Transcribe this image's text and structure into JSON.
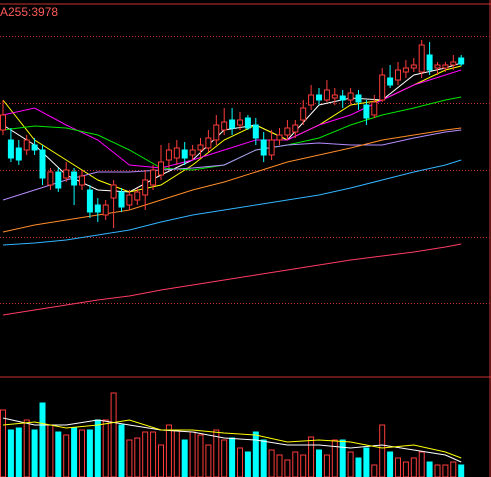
{
  "chart_data": [
    {
      "type": "candlestick",
      "title": "A255:3978",
      "title_color": "#ff5a5a",
      "up_color": "#ff3c3c",
      "down_color": "#00ffff",
      "grid": true,
      "grid_color": "#c83232",
      "ylim": [
        25,
        396
      ],
      "yticks": [
        97,
        163,
        230,
        297,
        364
      ],
      "open": [
        270,
        260,
        252,
        250,
        255,
        250,
        215,
        228,
        222,
        228,
        215,
        210,
        195,
        185,
        202,
        208,
        195,
        200,
        205,
        215,
        225,
        240,
        242,
        250,
        245,
        250,
        252,
        260,
        270,
        280,
        275,
        282,
        275,
        260,
        245,
        260,
        265,
        268,
        280,
        295,
        305,
        300,
        302,
        304,
        300,
        305,
        295,
        285,
        300,
        322,
        320,
        328,
        332,
        328,
        345,
        332,
        332,
        335,
        342
      ],
      "high": [
        300,
        272,
        260,
        265,
        262,
        255,
        232,
        232,
        238,
        232,
        230,
        215,
        202,
        200,
        220,
        212,
        210,
        212,
        230,
        235,
        255,
        257,
        260,
        258,
        255,
        262,
        270,
        285,
        292,
        292,
        288,
        285,
        282,
        268,
        270,
        272,
        280,
        280,
        300,
        315,
        312,
        320,
        312,
        310,
        312,
        310,
        300,
        305,
        332,
        335,
        338,
        340,
        342,
        360,
        358,
        338,
        338,
        345,
        345
      ],
      "low": [
        265,
        238,
        235,
        245,
        245,
        215,
        210,
        208,
        218,
        195,
        210,
        182,
        178,
        180,
        172,
        188,
        190,
        195,
        190,
        210,
        220,
        232,
        235,
        235,
        240,
        242,
        248,
        255,
        265,
        265,
        270,
        270,
        255,
        238,
        240,
        255,
        260,
        262,
        275,
        290,
        295,
        298,
        295,
        292,
        295,
        290,
        275,
        282,
        298,
        312,
        315,
        322,
        328,
        322,
        325,
        325,
        328,
        330,
        334
      ],
      "close": [
        285,
        242,
        240,
        260,
        250,
        222,
        228,
        212,
        230,
        215,
        224,
        188,
        188,
        195,
        215,
        193,
        205,
        208,
        220,
        230,
        238,
        250,
        252,
        242,
        250,
        255,
        262,
        275,
        278,
        272,
        280,
        272,
        262,
        245,
        260,
        265,
        272,
        275,
        292,
        305,
        300,
        310,
        305,
        300,
        307,
        298,
        282,
        298,
        325,
        315,
        330,
        332,
        335,
        355,
        330,
        335,
        335,
        338,
        336
      ],
      "lines": [
        {
          "color": "#ffffff",
          "x": [
            0,
            4,
            8,
            12,
            16,
            20,
            24,
            28,
            32,
            36,
            40,
            44,
            48,
            52,
            56,
            58
          ],
          "values": [
            275,
            255,
            225,
            210,
            208,
            225,
            240,
            270,
            275,
            260,
            295,
            302,
            300,
            325,
            332,
            337
          ]
        },
        {
          "color": "#ffff00",
          "x": [
            0,
            4,
            8,
            12,
            16,
            20,
            24,
            28,
            32,
            36,
            40,
            44,
            48,
            52,
            56,
            58
          ],
          "values": [
            300,
            260,
            240,
            220,
            208,
            215,
            235,
            260,
            275,
            260,
            275,
            295,
            300,
            315,
            330,
            334
          ]
        },
        {
          "color": "#ff00ff",
          "x": [
            0,
            4,
            8,
            12,
            16,
            20,
            24,
            28,
            32,
            36,
            40,
            44,
            48,
            52,
            56,
            58
          ],
          "values": [
            285,
            292,
            275,
            260,
            235,
            232,
            240,
            250,
            260,
            260,
            275,
            285,
            300,
            315,
            325,
            330
          ]
        },
        {
          "color": "#00e600",
          "x": [
            0,
            4,
            8,
            12,
            16,
            20,
            24,
            28,
            32,
            36,
            40,
            44,
            48,
            52,
            56,
            58
          ],
          "values": [
            270,
            274,
            272,
            265,
            250,
            232,
            230,
            235,
            250,
            255,
            262,
            275,
            285,
            292,
            300,
            303
          ]
        },
        {
          "color": "#b48cff",
          "x": [
            0,
            4,
            8,
            12,
            16,
            20,
            24,
            28,
            32,
            36,
            40,
            44,
            48,
            52,
            56,
            58
          ],
          "values": [
            200,
            210,
            220,
            228,
            228,
            230,
            232,
            235,
            250,
            255,
            257,
            255,
            255,
            262,
            268,
            270
          ]
        },
        {
          "color": "#ff8c28",
          "x": [
            0,
            4,
            8,
            12,
            16,
            20,
            24,
            28,
            32,
            36,
            40,
            44,
            48,
            52,
            56,
            58
          ],
          "values": [
            168,
            175,
            180,
            185,
            190,
            200,
            210,
            218,
            228,
            238,
            245,
            252,
            260,
            265,
            270,
            272
          ]
        },
        {
          "color": "#32b4ff",
          "x": [
            0,
            4,
            8,
            12,
            16,
            20,
            24,
            28,
            32,
            36,
            40,
            44,
            48,
            52,
            56,
            58
          ],
          "values": [
            155,
            157,
            160,
            165,
            170,
            178,
            185,
            190,
            195,
            200,
            205,
            212,
            220,
            228,
            235,
            240
          ]
        },
        {
          "color": "#ff3c64",
          "x": [
            0,
            4,
            8,
            12,
            16,
            20,
            24,
            28,
            32,
            36,
            40,
            44,
            48,
            52,
            56,
            58
          ],
          "values": [
            85,
            90,
            95,
            100,
            104,
            110,
            115,
            120,
            125,
            130,
            135,
            140,
            144,
            148,
            153,
            156
          ]
        }
      ]
    },
    {
      "type": "volume",
      "up_color": "#ff3c3c",
      "down_color": "#00ffff",
      "ylim": [
        0,
        100
      ],
      "values": [
        67,
        47,
        49,
        57,
        47,
        74,
        52,
        45,
        42,
        49,
        47,
        47,
        57,
        57,
        84,
        52,
        37,
        39,
        45,
        45,
        32,
        52,
        47,
        37,
        45,
        42,
        32,
        47,
        37,
        39,
        29,
        25,
        45,
        37,
        27,
        22,
        17,
        25,
        22,
        40,
        27,
        22,
        37,
        37,
        25,
        19,
        29,
        12,
        52,
        25,
        19,
        15,
        19,
        25,
        15,
        12,
        12,
        15,
        12
      ],
      "lines": [
        {
          "color": "#ffffff",
          "x": [
            0,
            4,
            8,
            12,
            16,
            20,
            24,
            28,
            32,
            36,
            40,
            44,
            48,
            52,
            56,
            58
          ],
          "values": [
            59,
            52,
            52,
            57,
            52,
            47,
            45,
            39,
            37,
            32,
            32,
            29,
            32,
            27,
            22,
            15
          ]
        },
        {
          "color": "#ffff00",
          "x": [
            0,
            4,
            8,
            12,
            16,
            20,
            24,
            28,
            32,
            36,
            40,
            44,
            48,
            52,
            56,
            58
          ],
          "values": [
            52,
            55,
            49,
            52,
            57,
            47,
            47,
            44,
            42,
            35,
            37,
            35,
            29,
            32,
            25,
            19
          ]
        }
      ]
    }
  ]
}
